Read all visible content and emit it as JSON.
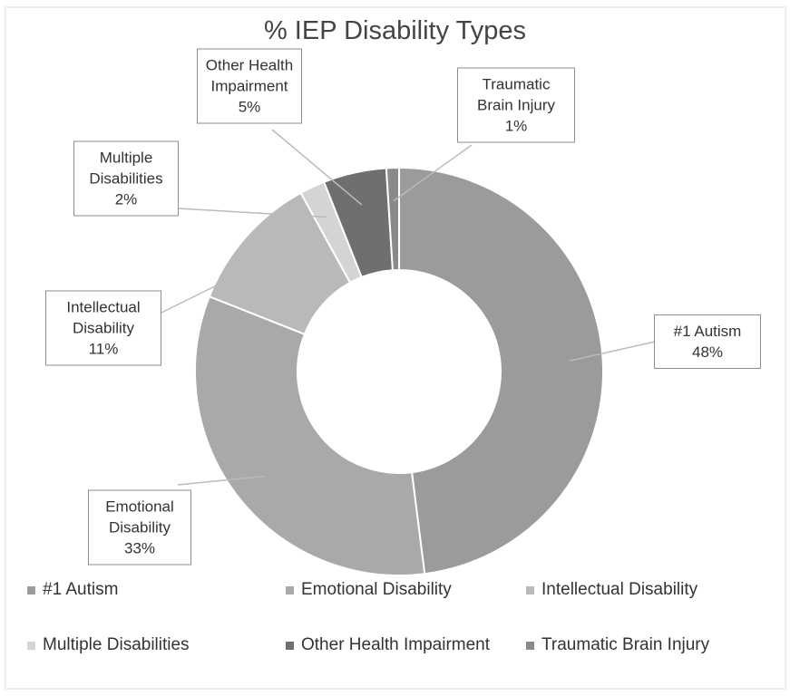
{
  "chart_data": {
    "type": "donut",
    "title": "% IEP Disability Types",
    "categories": [
      "#1 Autism",
      "Emotional Disability",
      "Intellectual Disability",
      "Multiple Disabilities",
      "Other Health Impairment",
      "Traumatic Brain Injury"
    ],
    "values": [
      48,
      33,
      11,
      2,
      5,
      1
    ],
    "value_labels": [
      "48%",
      "33%",
      "11%",
      "2%",
      "5%",
      "1%"
    ],
    "colors": [
      "#9b9b9b",
      "#a9a9a9",
      "#b9b9b9",
      "#d4d4d4",
      "#6f6f6f",
      "#8a8a8a"
    ],
    "legend": "bottom"
  }
}
